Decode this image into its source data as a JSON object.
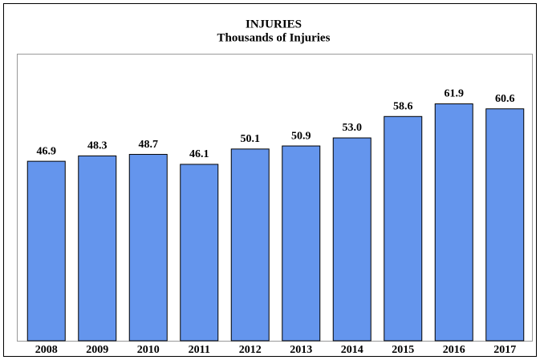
{
  "chart_data": {
    "type": "bar",
    "title": "INJURIES",
    "subtitle": "Thousands of Injuries",
    "categories": [
      "2008",
      "2009",
      "2010",
      "2011",
      "2012",
      "2013",
      "2014",
      "2015",
      "2016",
      "2017"
    ],
    "values": [
      46.9,
      48.3,
      48.7,
      46.1,
      50.1,
      50.9,
      53.0,
      58.6,
      61.9,
      60.6
    ],
    "value_labels": [
      "46.9",
      "48.3",
      "48.7",
      "46.1",
      "50.1",
      "50.9",
      "53.0",
      "58.6",
      "61.9",
      "60.6"
    ],
    "color": "#6495ed",
    "ylim": [
      0,
      75
    ]
  }
}
